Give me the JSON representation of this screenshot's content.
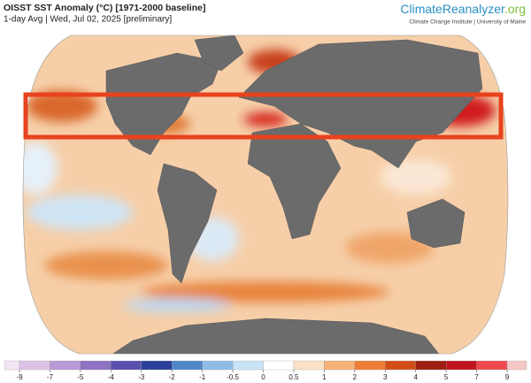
{
  "header": {
    "title": "OISST SST Anomaly (°C) [1971-2000 baseline]",
    "subtitle": "1-day Avg | Wed, Jul 02, 2025 [preliminary]"
  },
  "logo": {
    "name": "ClimateReanalyzer",
    "domain": ".org",
    "affiliation": "Climate Change Institute | University of Maine"
  },
  "colorbar": {
    "ticks": [
      -9,
      -7,
      -5,
      -4,
      -3,
      -2,
      -1,
      -0.5,
      0,
      0.5,
      1,
      2,
      3,
      4,
      5,
      7,
      9
    ],
    "colors": [
      "#f3e6f3",
      "#dcc3e6",
      "#b79ad6",
      "#8d73c2",
      "#5b4fae",
      "#2c3f9a",
      "#4f86c8",
      "#8fbce6",
      "#c9e2f5",
      "#ffffff",
      "#fbe0c6",
      "#f7b27a",
      "#ee7d36",
      "#d34d17",
      "#9c1f10",
      "#c0141e",
      "#f0484f",
      "#f6c7c7"
    ]
  }
}
